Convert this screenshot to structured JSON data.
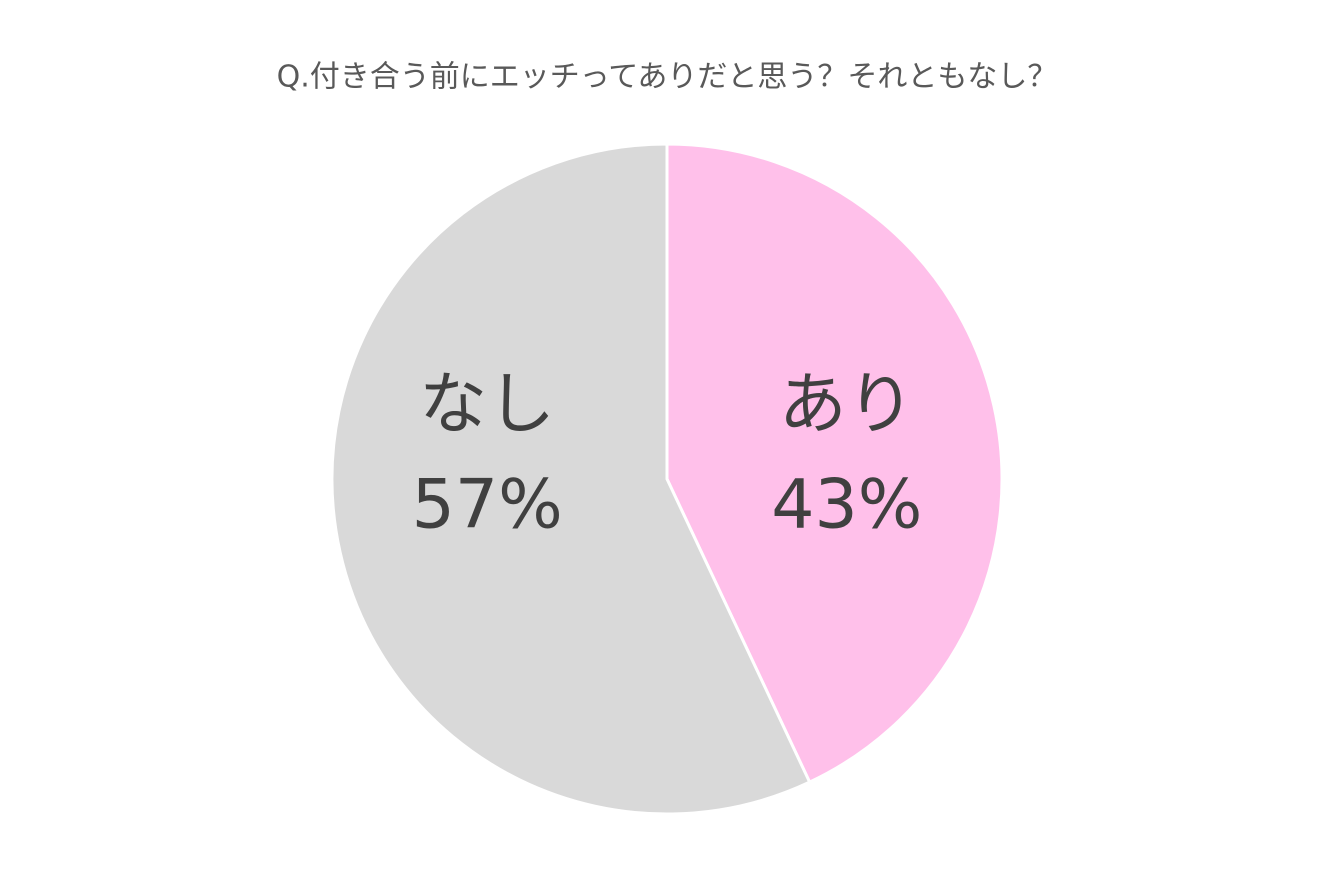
{
  "chart_data": {
    "type": "pie",
    "title": "Q.付き合う前にエッチってありだと思う？それともなし？",
    "categories": [
      "あり",
      "なし"
    ],
    "values": [
      43,
      57
    ],
    "value_labels": [
      "43%",
      "57%"
    ],
    "colors": [
      "#FFC0EA",
      "#D9D9D9"
    ]
  }
}
